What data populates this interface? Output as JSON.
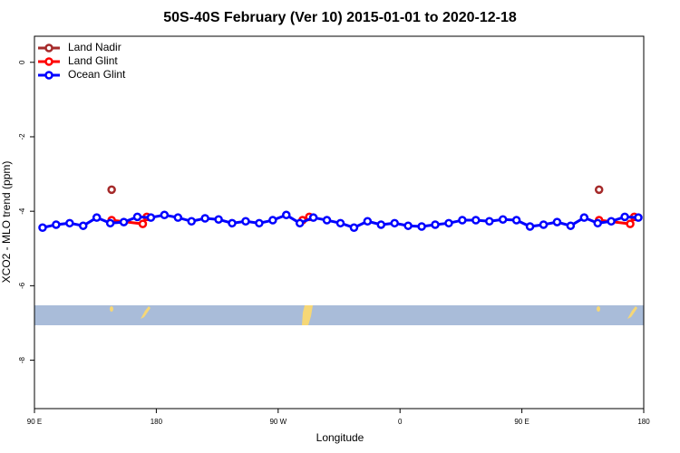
{
  "chart_data": {
    "type": "line",
    "title": "50S-40S February (Ver 10)   2015-01-01 to 2020-12-18",
    "x_label": "Longitude",
    "y_label": "XCO2 - MLO trend (ppm)",
    "xlim": [
      90,
      540
    ],
    "xticks": [
      {
        "value": 90,
        "label": "90 E"
      },
      180,
      {
        "value": 270,
        "label": "90 W"
      },
      {
        "value": 360,
        "label": "0"
      },
      {
        "value": 450,
        "label": "90 E"
      },
      {
        "value": 540,
        "label": "180"
      }
    ],
    "ylim": [
      -9.3,
      0.7
    ],
    "yticks": [
      0,
      -2,
      -4,
      -6,
      -8
    ],
    "legend": "top-left",
    "series": [
      {
        "name": "Land Nadir",
        "color": "#a52a2a",
        "x": [
          147,
          null,
          507
        ],
        "values": [
          -3.42,
          null,
          -3.42
        ]
      },
      {
        "name": "Land Glint",
        "color": "#ff0000",
        "x": [
          147,
          170,
          173,
          null,
          288,
          293,
          null,
          507,
          530,
          533
        ],
        "values": [
          -4.24,
          -4.34,
          -4.15,
          null,
          -4.24,
          -4.15,
          null,
          -4.24,
          -4.34,
          -4.15
        ]
      },
      {
        "name": "Ocean Glint",
        "color": "#0000ff",
        "x": [
          96,
          106,
          116,
          126,
          136,
          146,
          156,
          166,
          176,
          186,
          196,
          206,
          216,
          226,
          236,
          246,
          256,
          266,
          276,
          286,
          296,
          306,
          316,
          326,
          336,
          346,
          356,
          366,
          376,
          386,
          396,
          406,
          416,
          426,
          436,
          446,
          456,
          466,
          476,
          486,
          496,
          506,
          516,
          526,
          536
        ],
        "values": [
          -4.44,
          -4.36,
          -4.32,
          -4.39,
          -4.17,
          -4.32,
          -4.29,
          -4.15,
          -4.17,
          -4.1,
          -4.17,
          -4.27,
          -4.19,
          -4.22,
          -4.32,
          -4.27,
          -4.32,
          -4.24,
          -4.1,
          -4.32,
          -4.17,
          -4.24,
          -4.32,
          -4.44,
          -4.27,
          -4.36,
          -4.32,
          -4.39,
          -4.41,
          -4.36,
          -4.32,
          -4.24,
          -4.24,
          -4.27,
          -4.22,
          -4.24,
          -4.41,
          -4.36,
          -4.29,
          -4.39,
          -4.17,
          -4.32,
          -4.27,
          -4.15,
          -4.17
        ]
      }
    ]
  }
}
